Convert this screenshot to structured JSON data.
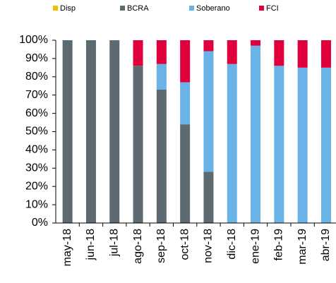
{
  "chart_data": {
    "type": "stacked_bar",
    "categories": [
      "may-18",
      "jun-18",
      "jul-18",
      "ago-18",
      "sep-18",
      "oct-18",
      "nov-18",
      "dic-18",
      "ene-19",
      "feb-19",
      "mar-19",
      "abr-19"
    ],
    "series": [
      {
        "name": "Disp",
        "color": "#f2c000",
        "values": [
          0,
          0,
          0,
          0,
          0,
          0,
          0,
          0,
          0,
          0,
          0,
          0
        ]
      },
      {
        "name": "BCRA",
        "color": "#5e6a71",
        "values": [
          100,
          100,
          100,
          86,
          73,
          54,
          28,
          0,
          0,
          0,
          0,
          0
        ]
      },
      {
        "name": "Soberano",
        "color": "#69b3e7",
        "values": [
          0,
          0,
          0,
          0,
          14,
          23,
          66,
          87,
          97,
          86,
          85,
          85
        ]
      },
      {
        "name": "FCI",
        "color": "#e0003b",
        "values": [
          0,
          0,
          0,
          14,
          13,
          23,
          6,
          13,
          3,
          14,
          15,
          15
        ]
      }
    ],
    "ylim": [
      0,
      100
    ],
    "yticks": [
      {
        "value": 0,
        "label": "0%"
      },
      {
        "value": 10,
        "label": "10%"
      },
      {
        "value": 20,
        "label": "20%"
      },
      {
        "value": 30,
        "label": "30%"
      },
      {
        "value": 40,
        "label": "40%"
      },
      {
        "value": 50,
        "label": "50%"
      },
      {
        "value": 60,
        "label": "60%"
      },
      {
        "value": 70,
        "label": "70%"
      },
      {
        "value": 80,
        "label": "80%"
      },
      {
        "value": 90,
        "label": "90%"
      },
      {
        "value": 100,
        "label": "100%"
      }
    ],
    "grid": false
  }
}
